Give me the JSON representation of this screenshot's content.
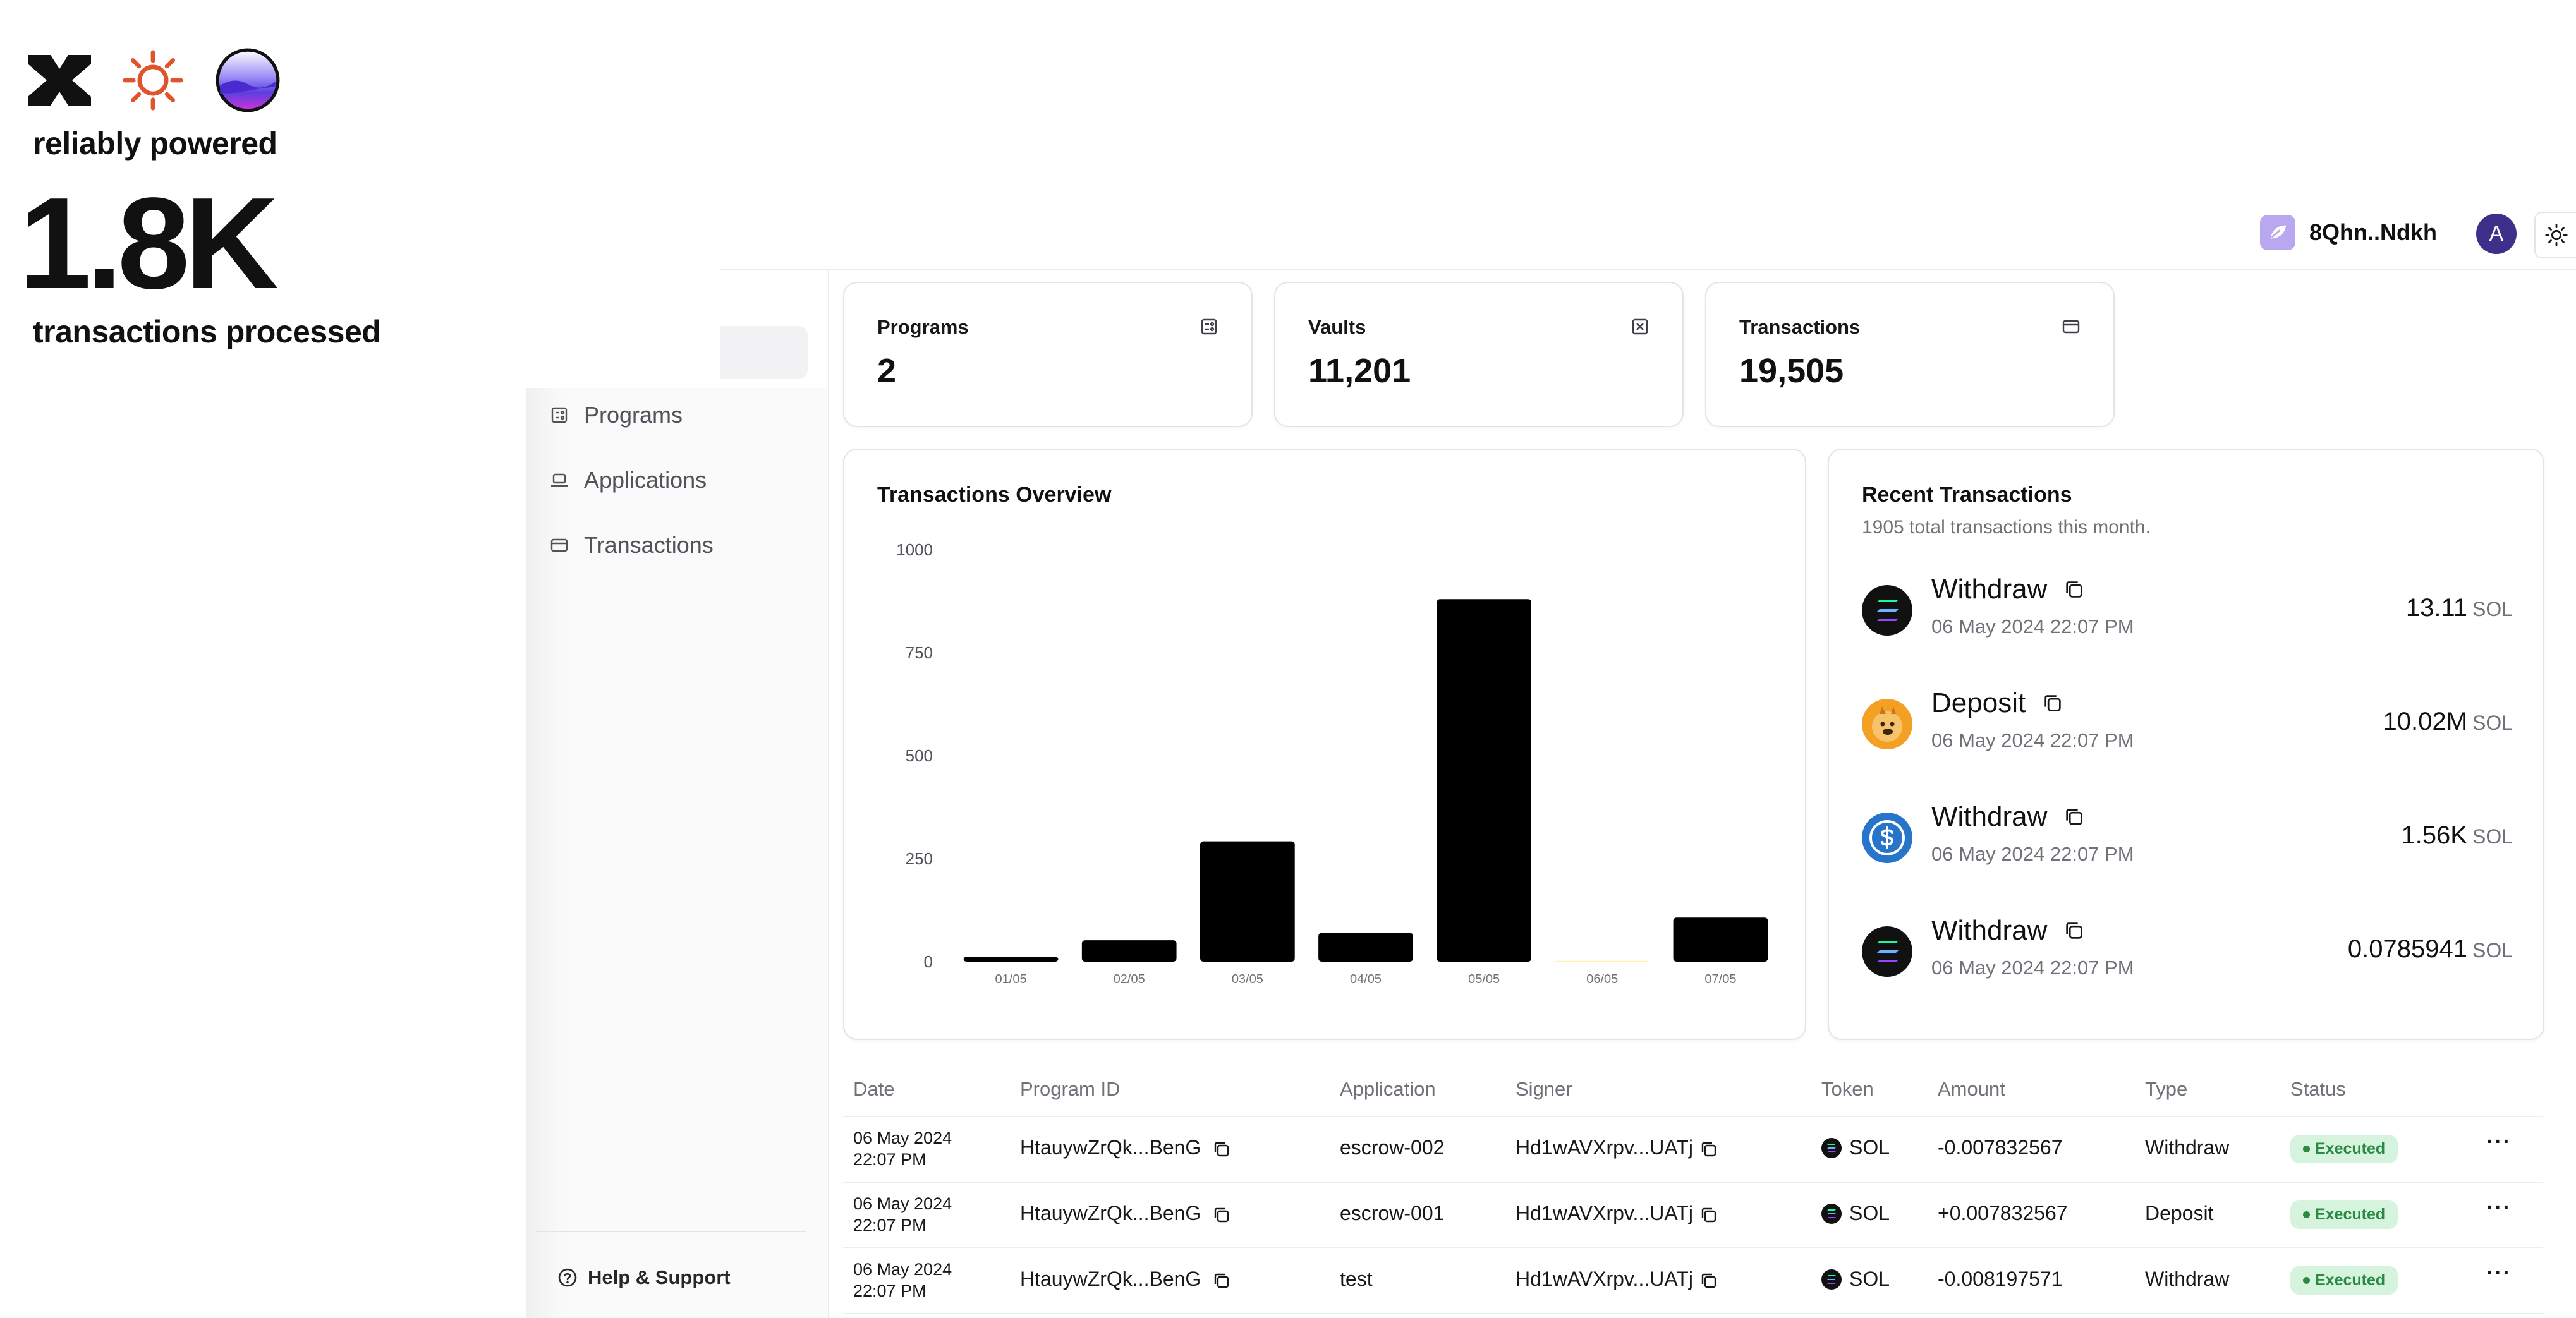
{
  "hero": {
    "tagline": "reliably powered",
    "big_number": "1.8K",
    "subline": "transactions processed"
  },
  "header": {
    "wallet_label": "8Qhn..Ndkh",
    "avatar_initial": "A"
  },
  "sidebar": {
    "items": [
      {
        "label": "Programs",
        "icon": "programs-icon"
      },
      {
        "label": "Applications",
        "icon": "laptop-icon"
      },
      {
        "label": "Transactions",
        "icon": "card-icon"
      }
    ],
    "help_label": "Help & Support"
  },
  "stats": [
    {
      "label": "Programs",
      "value": "2",
      "icon": "programs-icon"
    },
    {
      "label": "Vaults",
      "value": "11,201",
      "icon": "vault-icon"
    },
    {
      "label": "Transactions",
      "value": "19,505",
      "icon": "card-icon"
    }
  ],
  "overview": {
    "title": "Transactions Overview"
  },
  "chart_data": {
    "type": "bar",
    "title": "Transactions Overview",
    "categories": [
      "01/05",
      "02/05",
      "03/05",
      "04/05",
      "05/05",
      "06/05",
      "07/05"
    ],
    "values": [
      12,
      52,
      292,
      70,
      880,
      2,
      107
    ],
    "ylim": [
      0,
      1000
    ],
    "yticks": [
      "0",
      "250",
      "500",
      "750",
      "1000"
    ],
    "grid": false,
    "bar_color": "#000000"
  },
  "recent": {
    "title": "Recent Transactions",
    "subtitle": "1905 total transactions this month.",
    "items": [
      {
        "type": "Withdraw",
        "time": "06 May 2024 22:07 PM",
        "amount": "13.11",
        "unit": "SOL",
        "token_icon": "solana-icon"
      },
      {
        "type": "Deposit",
        "time": "06 May 2024 22:07 PM",
        "amount": "10.02M",
        "unit": "SOL",
        "token_icon": "bonk-icon"
      },
      {
        "type": "Withdraw",
        "time": "06 May 2024 22:07 PM",
        "amount": "1.56K",
        "unit": "SOL",
        "token_icon": "usdc-icon"
      },
      {
        "type": "Withdraw",
        "time": "06 May 2024 22:07 PM",
        "amount": "0.0785941",
        "unit": "SOL",
        "token_icon": "solana-icon"
      }
    ]
  },
  "table": {
    "columns": [
      "Date",
      "Program ID",
      "Application",
      "Signer",
      "Token",
      "Amount",
      "Type",
      "Status"
    ],
    "rows": [
      {
        "date": "06 May 2024",
        "time": "22:07 PM",
        "program_id": "HtauywZrQk...BenG",
        "application": "escrow-002",
        "signer": "Hd1wAVXrpv...UATj",
        "token": "SOL",
        "amount": "-0.007832567",
        "type": "Withdraw",
        "status": "Executed"
      },
      {
        "date": "06 May 2024",
        "time": "22:07 PM",
        "program_id": "HtauywZrQk...BenG",
        "application": "escrow-001",
        "signer": "Hd1wAVXrpv...UATj",
        "token": "SOL",
        "amount": "+0.007832567",
        "type": "Deposit",
        "status": "Executed"
      },
      {
        "date": "06 May 2024",
        "time": "22:07 PM",
        "program_id": "HtauywZrQk...BenG",
        "application": "test",
        "signer": "Hd1wAVXrpv...UATj",
        "token": "SOL",
        "amount": "-0.008197571",
        "type": "Withdraw",
        "status": "Executed"
      }
    ],
    "row_menu": "···"
  },
  "colors": {
    "accent_avatar": "#3d2f8a",
    "wallet_icon": "#b9a8f0",
    "status_bg": "#d5f3dd",
    "status_text": "#2a8a43"
  }
}
